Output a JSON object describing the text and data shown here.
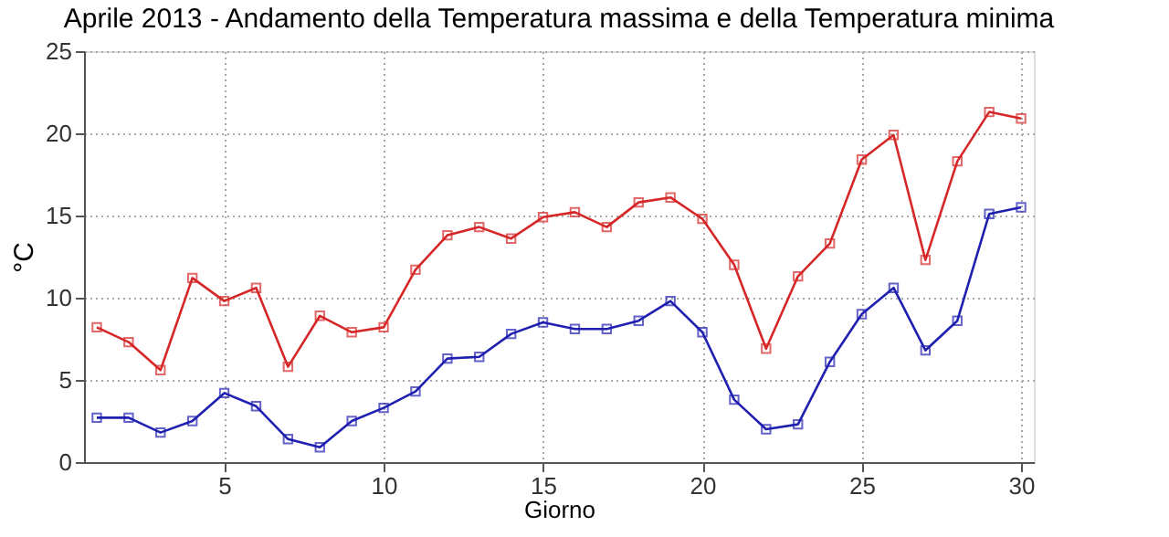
{
  "chart_data": {
    "type": "line",
    "title": "Aprile 2013 - Andamento della Temperatura massima e della Temperatura minima",
    "xlabel": "Giorno",
    "ylabel": "°C",
    "x": [
      1,
      2,
      3,
      4,
      5,
      6,
      7,
      8,
      9,
      10,
      11,
      12,
      13,
      14,
      15,
      16,
      17,
      18,
      19,
      20,
      21,
      22,
      23,
      24,
      25,
      26,
      27,
      28,
      29,
      30
    ],
    "series": [
      {
        "color": "#d62728",
        "values": [
          8.2,
          7.3,
          5.6,
          11.2,
          9.8,
          10.6,
          5.8,
          8.9,
          7.9,
          8.2,
          11.7,
          13.8,
          14.3,
          13.6,
          14.9,
          15.2,
          14.3,
          15.8,
          16.1,
          14.8,
          12.0,
          6.9,
          11.3,
          13.3,
          18.4,
          19.9,
          12.3,
          18.3,
          21.3,
          20.9
        ]
      },
      {
        "color": "#2020b0",
        "values": [
          2.7,
          2.7,
          1.8,
          2.5,
          4.2,
          3.4,
          1.4,
          0.9,
          2.5,
          3.3,
          4.3,
          6.3,
          6.4,
          7.8,
          8.5,
          8.1,
          8.1,
          8.6,
          9.8,
          7.9,
          3.8,
          2.0,
          2.3,
          6.1,
          9.0,
          10.6,
          6.8,
          8.6,
          15.1,
          15.5
        ]
      }
    ],
    "xlim": [
      0.6,
      30.4
    ],
    "xticks": [
      5,
      10,
      15,
      20,
      25,
      30
    ],
    "ylim": [
      0,
      25
    ],
    "yticks": [
      0,
      5,
      10,
      15,
      20,
      25
    ],
    "grid": true,
    "marker": "square",
    "line_style": "solid"
  }
}
